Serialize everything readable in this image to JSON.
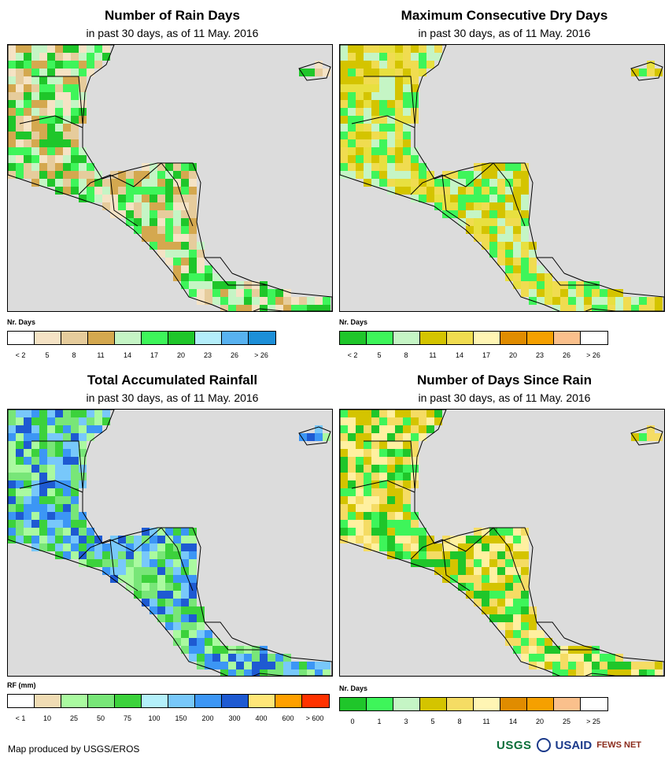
{
  "panels": [
    {
      "id": "rain-days",
      "title": "Number of Rain Days",
      "subtitle": "in past 30 days, as of 11 May. 2016",
      "legend_title": "Nr. Days",
      "legend_colors": [
        "#ffffff",
        "#f5e3c5",
        "#e6cc9c",
        "#d4a84f",
        "#c5f5c5",
        "#3ef55a",
        "#1fc62a",
        "#b4eefa",
        "#58b2f0",
        "#1d8fd8"
      ],
      "legend_labels": [
        "< 2",
        "5",
        "8",
        "11",
        "14",
        "17",
        "20",
        "23",
        "26",
        "> 26"
      ],
      "palette": [
        "#f5e3c5",
        "#e6cc9c",
        "#d4a84f",
        "#c5f5c5",
        "#3ef55a",
        "#1fc62a"
      ]
    },
    {
      "id": "dry-days",
      "title": "Maximum Consecutive Dry Days",
      "subtitle": "in past 30 days, as of 11 May. 2016",
      "legend_title": "Nr. Days",
      "legend_colors": [
        "#1fc62a",
        "#3ef55a",
        "#c5f5c5",
        "#d4c400",
        "#f0dc50",
        "#fff5b4",
        "#e08c00",
        "#f5a000",
        "#fac08c",
        "#ffffff"
      ],
      "legend_labels": [
        "< 2",
        "5",
        "8",
        "11",
        "14",
        "17",
        "20",
        "23",
        "26",
        "> 26"
      ],
      "palette": [
        "#d4c400",
        "#f0dc50",
        "#c5f5c5",
        "#3ef55a",
        "#e8e040"
      ]
    },
    {
      "id": "rainfall",
      "title": "Total Accumulated Rainfall",
      "subtitle": "in past 30 days, as of 11 May. 2016",
      "legend_title": "RF (mm)",
      "legend_colors": [
        "#ffffff",
        "#f0dcb4",
        "#aafaa0",
        "#78e678",
        "#3cd23c",
        "#b4f0fa",
        "#78c8fa",
        "#3c96f5",
        "#1e5ad2",
        "#ffe678",
        "#ffa000",
        "#ff3200"
      ],
      "legend_labels": [
        "< 1",
        "10",
        "25",
        "50",
        "75",
        "100",
        "150",
        "200",
        "300",
        "400",
        "600",
        "> 600"
      ],
      "palette": [
        "#aafaa0",
        "#78e678",
        "#3cd23c",
        "#78c8fa",
        "#3c96f5",
        "#1e5ad2"
      ]
    },
    {
      "id": "since-rain",
      "title": "Number of Days Since Rain",
      "subtitle": "in past 30 days, as of 11 May. 2016",
      "legend_title": "Nr. Days",
      "legend_colors": [
        "#1fc62a",
        "#3ef55a",
        "#c5f5c5",
        "#d4c400",
        "#f5dc64",
        "#fff5b4",
        "#e08c00",
        "#f5a000",
        "#fac08c",
        "#ffffff"
      ],
      "legend_labels": [
        "0",
        "1",
        "3",
        "5",
        "8",
        "11",
        "14",
        "20",
        "25",
        "> 25"
      ],
      "palette": [
        "#d4c400",
        "#f5dc64",
        "#fff0a0",
        "#1fc62a",
        "#3ef55a"
      ]
    }
  ],
  "footer": {
    "credit": "Map produced by USGS/EROS",
    "logos": [
      "USGS",
      "USAID",
      "FEWS NET"
    ]
  }
}
